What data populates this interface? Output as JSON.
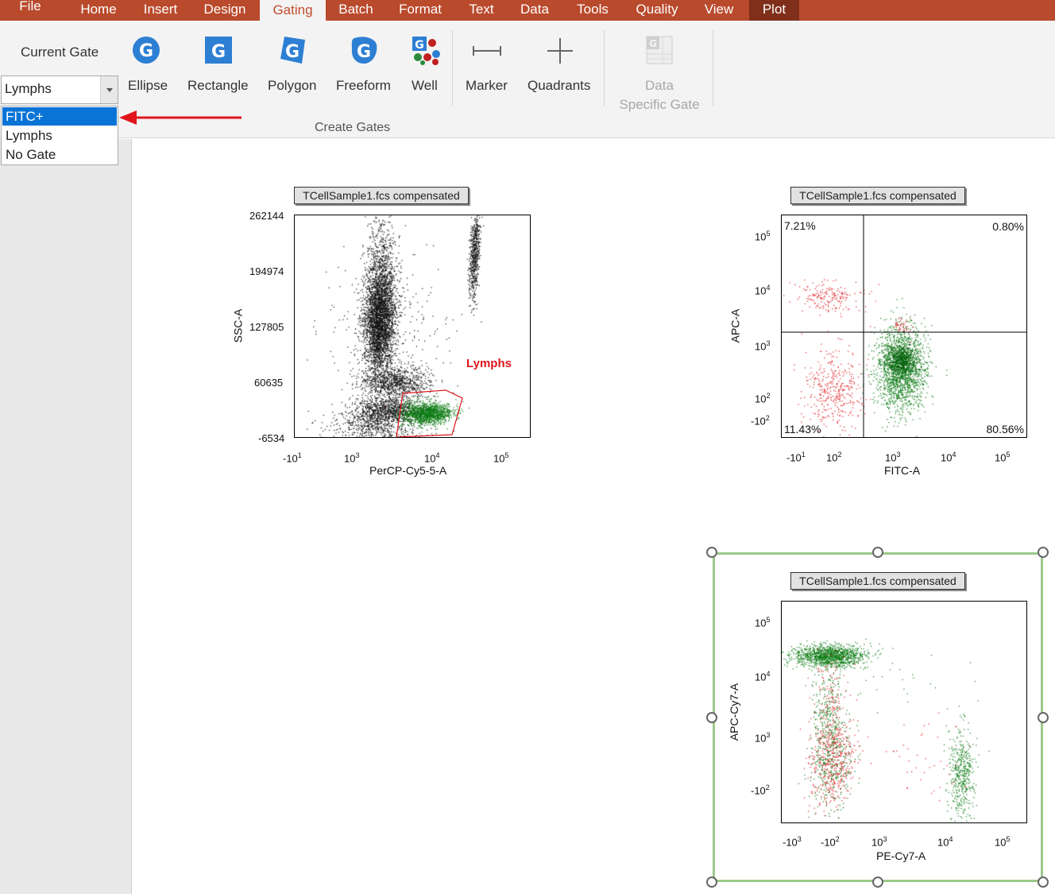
{
  "menubar": {
    "items": [
      "File",
      "Home",
      "Insert",
      "Design",
      "Gating",
      "Batch",
      "Format",
      "Text",
      "Data",
      "Tools",
      "Quality",
      "View",
      "Plot"
    ],
    "active": "Gating"
  },
  "ribbon": {
    "current_gate_label": "Current Gate",
    "current_gate_value": "Lymphs",
    "dropdown_options": [
      "FITC+",
      "Lymphs",
      "No Gate"
    ],
    "dropdown_selected": "FITC+",
    "buttons": {
      "ellipse": "Ellipse",
      "rectangle": "Rectangle",
      "polygon": "Polygon",
      "freeform": "Freeform",
      "well": "Well",
      "marker": "Marker",
      "quadrants": "Quadrants",
      "data_specific_line1": "Data",
      "data_specific_line2": "Specific Gate"
    },
    "group_label": "Create Gates"
  },
  "annotation": {
    "arrow_color": "#e0151c"
  },
  "colors": {
    "accent": "#b94a2c",
    "selected": "#0a74d6",
    "gate_red": "#e0151c",
    "event_green": "#0a7a12",
    "selection_green": "#9bc98a"
  },
  "plots": [
    {
      "title": "TCellSample1.fcs compensated",
      "xlabel": "PerCP-Cy5-5-A",
      "ylabel": "SSC-A",
      "yticks": [
        "262144",
        "194974",
        "127805",
        "60635",
        "-6534"
      ],
      "xticks": [
        [
          "-10",
          "1"
        ],
        [
          "10",
          "3"
        ],
        [
          "10",
          "4"
        ],
        [
          "10",
          "5"
        ]
      ],
      "gate_label": "Lymphs"
    },
    {
      "title": "TCellSample1.fcs compensated",
      "xlabel": "FITC-A",
      "ylabel": "APC-A",
      "yticks": [
        [
          "10",
          "5"
        ],
        [
          "10",
          "4"
        ],
        [
          "10",
          "3"
        ],
        [
          "10",
          "2"
        ],
        [
          "-10",
          "2"
        ]
      ],
      "xticks": [
        [
          "-10",
          "1"
        ],
        [
          "10",
          "2"
        ],
        [
          "10",
          "3"
        ],
        [
          "10",
          "4"
        ],
        [
          "10",
          "5"
        ]
      ],
      "quadrants": {
        "ul": "7.21%",
        "ur": "0.80%",
        "ll": "11.43%",
        "lr": "80.56%"
      }
    },
    {
      "title": "TCellSample1.fcs compensated",
      "xlabel": "PE-Cy7-A",
      "ylabel": "APC-Cy7-A",
      "yticks": [
        [
          "10",
          "5"
        ],
        [
          "10",
          "4"
        ],
        [
          "10",
          "3"
        ],
        [
          "-10",
          "2"
        ]
      ],
      "xticks": [
        [
          "-10",
          "3"
        ],
        [
          "-10",
          "2"
        ],
        [
          "10",
          "3"
        ],
        [
          "10",
          "4"
        ],
        [
          "10",
          "5"
        ]
      ]
    }
  ]
}
